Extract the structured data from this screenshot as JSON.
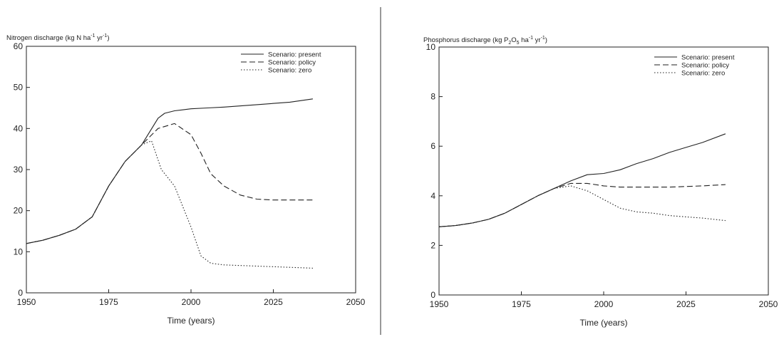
{
  "chart_data": [
    {
      "type": "line",
      "ylabel_main": "Nitrogen discharge (kg N ha",
      "ylabel_mid": " yr",
      "ylabel_tail": ")",
      "ylabel_sup1": "-1",
      "ylabel_sup2": "-1",
      "xlabel": "Time (years)",
      "xlim": [
        1950,
        2050
      ],
      "ylim": [
        0,
        60
      ],
      "xticks": [
        1950,
        1975,
        2000,
        2025,
        2050
      ],
      "yticks": [
        0,
        10,
        20,
        30,
        40,
        50,
        60
      ],
      "legend_position": "top-right",
      "series": [
        {
          "name": "Scenario: present",
          "style": "solid",
          "x": [
            1950,
            1955,
            1960,
            1965,
            1970,
            1975,
            1980,
            1985,
            1990,
            1992,
            1995,
            2000,
            2005,
            2010,
            2020,
            2030,
            2037
          ],
          "y": [
            12,
            12.8,
            14,
            15.5,
            18.5,
            26,
            32,
            36,
            42.5,
            43.7,
            44.3,
            44.8,
            45,
            45.2,
            45.8,
            46.4,
            47.2
          ]
        },
        {
          "name": "Scenario: policy",
          "style": "dashed",
          "x": [
            1950,
            1955,
            1960,
            1965,
            1970,
            1975,
            1980,
            1985,
            1990,
            1995,
            2000,
            2003,
            2006,
            2010,
            2015,
            2020,
            2025,
            2030,
            2037
          ],
          "y": [
            12,
            12.8,
            14,
            15.5,
            18.5,
            26,
            32,
            36,
            40,
            41.2,
            38.5,
            34,
            29,
            26,
            23.8,
            22.8,
            22.6,
            22.6,
            22.6
          ]
        },
        {
          "name": "Scenario: zero",
          "style": "dotted",
          "x": [
            1950,
            1955,
            1960,
            1965,
            1970,
            1975,
            1980,
            1985,
            1988,
            1991,
            1995,
            2000,
            2003,
            2006,
            2010,
            2020,
            2030,
            2037
          ],
          "y": [
            12,
            12.8,
            14,
            15.5,
            18.5,
            26,
            32,
            36,
            37,
            30,
            26,
            16,
            9,
            7.2,
            6.8,
            6.5,
            6.2,
            6.0
          ]
        }
      ]
    },
    {
      "type": "line",
      "ylabel_main": "Phosphorus discharge (kg P",
      "ylabel_sub1": "2",
      "ylabel_o": "O",
      "ylabel_sub2": "5",
      "ylabel_mid": " ha",
      "ylabel_mid2": " yr",
      "ylabel_tail": ")",
      "ylabel_sup1": "-1",
      "ylabel_sup2": "-1",
      "xlabel": "Time (years)",
      "xlim": [
        1950,
        2050
      ],
      "ylim": [
        0,
        10
      ],
      "xticks": [
        1950,
        1975,
        2000,
        2025,
        2050
      ],
      "yticks": [
        0,
        2,
        4,
        6,
        8,
        10
      ],
      "legend_position": "top-right",
      "series": [
        {
          "name": "Scenario: present",
          "style": "solid",
          "x": [
            1950,
            1955,
            1960,
            1965,
            1970,
            1975,
            1980,
            1985,
            1990,
            1995,
            2000,
            2005,
            2010,
            2015,
            2020,
            2025,
            2030,
            2037
          ],
          "y": [
            2.75,
            2.8,
            2.9,
            3.05,
            3.3,
            3.65,
            4.0,
            4.3,
            4.6,
            4.85,
            4.9,
            5.05,
            5.3,
            5.5,
            5.75,
            5.95,
            6.15,
            6.5
          ]
        },
        {
          "name": "Scenario: policy",
          "style": "dashed",
          "x": [
            1950,
            1955,
            1960,
            1965,
            1970,
            1975,
            1980,
            1985,
            1990,
            1995,
            2000,
            2005,
            2010,
            2020,
            2030,
            2037
          ],
          "y": [
            2.75,
            2.8,
            2.9,
            3.05,
            3.3,
            3.65,
            4.0,
            4.3,
            4.5,
            4.5,
            4.4,
            4.35,
            4.35,
            4.35,
            4.4,
            4.45
          ]
        },
        {
          "name": "Scenario: zero",
          "style": "dotted",
          "x": [
            1950,
            1955,
            1960,
            1965,
            1970,
            1975,
            1980,
            1985,
            1990,
            1995,
            2000,
            2005,
            2010,
            2015,
            2020,
            2025,
            2030,
            2037
          ],
          "y": [
            2.75,
            2.8,
            2.9,
            3.05,
            3.3,
            3.65,
            4.0,
            4.3,
            4.4,
            4.2,
            3.85,
            3.5,
            3.35,
            3.3,
            3.2,
            3.15,
            3.1,
            3.0
          ]
        }
      ]
    }
  ]
}
